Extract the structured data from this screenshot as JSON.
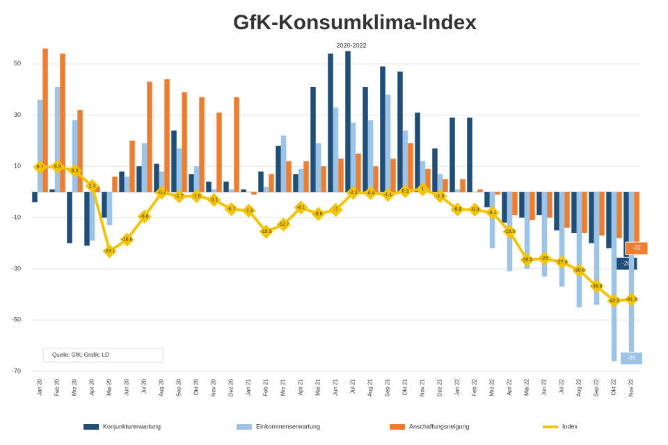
{
  "chart_data": {
    "type": "bar-line",
    "title": "GfK-Konsumklima-Index",
    "subtitle": "2020-2022",
    "source": "Quelle: GfK; Grafik: LD",
    "categories": [
      "Jan 20",
      "Feb 20",
      "Mrz 20",
      "Apr 20",
      "Mai 20",
      "Jun 20",
      "Jul 20",
      "Aug 20",
      "Sep 20",
      "Okt 20",
      "Nov 20",
      "Dez 20",
      "Jan 21",
      "Feb 21",
      "Mrz 21",
      "Apr 21",
      "Mai 21",
      "Jun 21",
      "Jul 21",
      "Aug 21",
      "Sep 21",
      "Okt 21",
      "Nov 21",
      "Dez 21",
      "Jan 22",
      "Feb 22",
      "Mrz 22",
      "Apr 22",
      "Mai 22",
      "Jun 22",
      "Jul 22",
      "Aug 22",
      "Sep 22",
      "Okt 22",
      "Nov 22"
    ],
    "series": [
      {
        "name": "Konjunkturerwartung",
        "color": "#1f4e79",
        "kind": "bar",
        "values": [
          -4,
          1,
          -20,
          -21,
          -10,
          8,
          10,
          11,
          24,
          7,
          4,
          4,
          1,
          8,
          18,
          7,
          41,
          54,
          55,
          41,
          49,
          47,
          31,
          17,
          29,
          29,
          -6,
          -12,
          -10,
          -9,
          -15,
          -16,
          -20,
          -22,
          -28
        ]
      },
      {
        "name": "Einkommenserwartung",
        "color": "#9dc3e6",
        "kind": "bar",
        "values": [
          36,
          41,
          28,
          -19,
          -13,
          6,
          19,
          8,
          17,
          10,
          1,
          1,
          0,
          2,
          22,
          9,
          19,
          33,
          27,
          28,
          38,
          24,
          12,
          7,
          1,
          0,
          -22,
          -31,
          -30,
          -33,
          -37,
          -45,
          -44,
          -66,
          -65
        ]
      },
      {
        "name": "Anschaffungsneigung",
        "color": "#ed7d31",
        "kind": "bar",
        "values": [
          56,
          54,
          32,
          2,
          6,
          20,
          43,
          44,
          39,
          37,
          31,
          37,
          -1,
          7,
          12,
          12,
          10,
          13,
          15,
          10,
          13,
          19,
          9,
          5,
          5,
          1,
          -1,
          -9,
          -11,
          -10,
          -14,
          -16,
          -17,
          -18,
          -22
        ]
      },
      {
        "name": "Index",
        "color": "#f5c400",
        "kind": "line",
        "values": [
          9.7,
          9.9,
          8.3,
          2.3,
          -23.1,
          -18.6,
          -9.6,
          -0.2,
          -1.7,
          -1.6,
          -3.1,
          -6.7,
          -7.3,
          -15.5,
          -12.7,
          -6.1,
          -8.6,
          -7.0,
          -0.3,
          -0.4,
          -1.1,
          0.3,
          1.0,
          -1.6,
          -6.8,
          -6.9,
          -8.1,
          -15.5,
          -26.5,
          -26.0,
          -27.4,
          -30.6,
          -36.8,
          -42.5,
          -41.9
        ]
      }
    ],
    "ylim": [
      -70,
      60
    ],
    "yticks": [
      50,
      30,
      10,
      -10,
      -30,
      -50,
      -70
    ],
    "grid": true
  }
}
